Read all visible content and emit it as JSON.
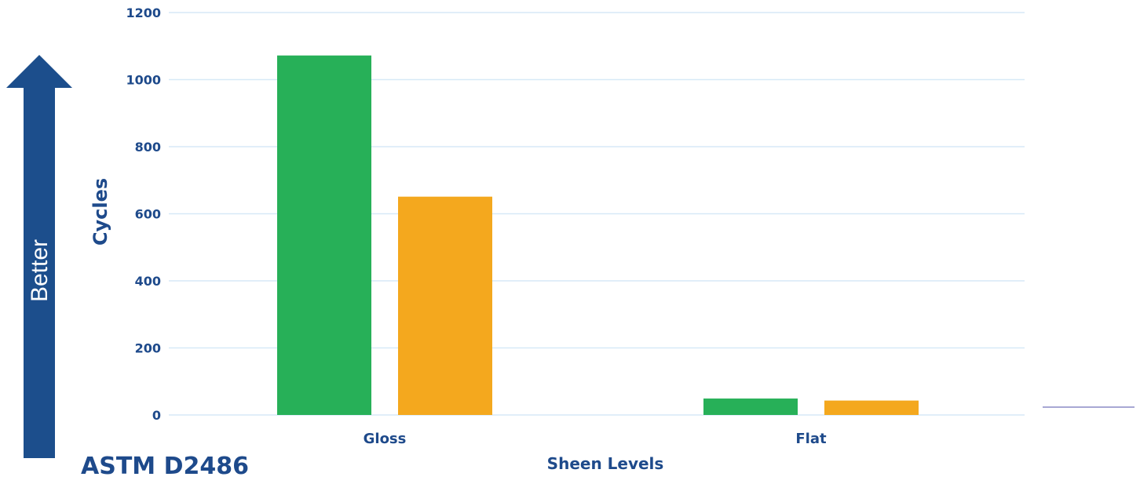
{
  "chart_data": {
    "type": "bar",
    "categories": [
      "Gloss",
      "Flat"
    ],
    "series": [
      {
        "values": [
          1072,
          49
        ]
      },
      {
        "values": [
          651,
          43
        ]
      }
    ],
    "ylabel": "Cycles",
    "xlabel": "Sheen Levels",
    "ylim": [
      0,
      1200
    ],
    "yticks": [
      0,
      200,
      400,
      600,
      800,
      1000,
      1200
    ],
    "grid": true,
    "legend": "none"
  },
  "arrow_label": "Better",
  "standard_label": "ASTM D2486",
  "colors": {
    "series_1": "#27b058",
    "series_2": "#f4a81e",
    "axis_text": "#1e4a8b",
    "arrow": "#1c4e8c",
    "grid": "#d7e9f7",
    "baseline": "#a8a8d4"
  }
}
